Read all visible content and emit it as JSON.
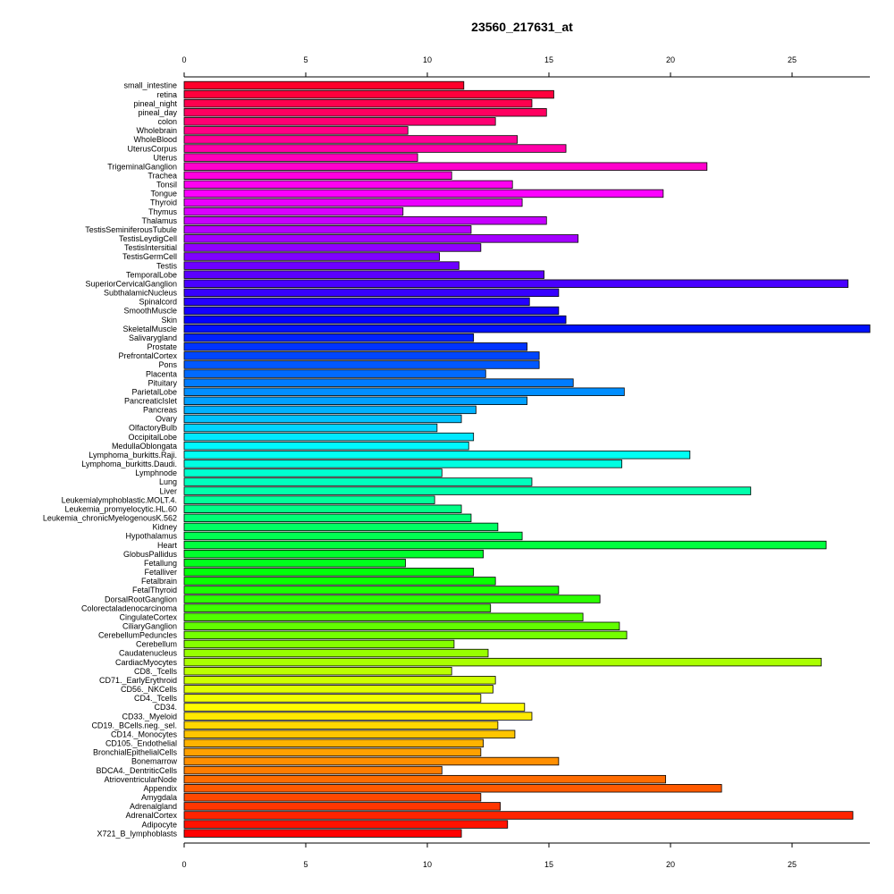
{
  "chart_data": {
    "type": "bar",
    "orientation": "horizontal",
    "title": "23560_217631_at",
    "xlabel": "",
    "ylabel": "",
    "xlim": [
      0,
      28.2
    ],
    "ticks": [
      0,
      5,
      10,
      15,
      20,
      25
    ],
    "grid": false,
    "categories": [
      "small_intestine",
      "retina",
      "pineal_night",
      "pineal_day",
      "colon",
      "Wholebrain",
      "WholeBlood",
      "UterusCorpus",
      "Uterus",
      "TrigeminalGanglion",
      "Trachea",
      "Tonsil",
      "Tongue",
      "Thyroid",
      "Thymus",
      "Thalamus",
      "TestisSeminiferousTubule",
      "TestisLeydigCell",
      "TestisIntersitial",
      "TestisGermCell",
      "Testis",
      "TemporalLobe",
      "SuperiorCervicalGanglion",
      "SubthalamicNucleus",
      "Spinalcord",
      "SmoothMuscle",
      "Skin",
      "SkeletalMuscle",
      "Salivarygland",
      "Prostate",
      "PrefrontalCortex",
      "Pons",
      "Placenta",
      "Pituitary",
      "ParietalLobe",
      "PancreaticIslet",
      "Pancreas",
      "Ovary",
      "OlfactoryBulb",
      "OccipitalLobe",
      "MedullaOblongata",
      "Lymphoma_burkitts.Raji.",
      "Lymphoma_burkitts.Daudi.",
      "Lymphnode",
      "Lung",
      "Liver",
      "Leukemialymphoblastic.MOLT.4.",
      "Leukemia_promyelocytic.HL.60",
      "Leukemia_chronicMyelogenousK.562",
      "Kidney",
      "Hypothalamus",
      "Heart",
      "GlobusPallidus",
      "Fetallung",
      "Fetalliver",
      "Fetalbrain",
      "FetalThyroid",
      "DorsalRootGanglion",
      "Colorectaladenocarcinoma",
      "CingulateCortex",
      "CiliaryGanglion",
      "CerebellumPeduncles",
      "Cerebellum",
      "Caudatenucleus",
      "CardiacMyocytes",
      "CD8._Tcells",
      "CD71._EarlyErythroid",
      "CD56._NKCells",
      "CD4._Tcells",
      "CD34.",
      "CD33._Myeloid",
      "CD19._BCells.neg._sel.",
      "CD14._Monocytes",
      "CD105._Endothelial",
      "BronchialEpithelialCells",
      "Bonemarrow",
      "BDCA4._DentriticCells",
      "AtrioventricularNode",
      "Appendix",
      "Amygdala",
      "Adrenalgland",
      "AdrenalCortex",
      "Adipocyte",
      "X721_B_lymphoblasts"
    ],
    "values": [
      11.5,
      15.2,
      14.3,
      14.9,
      12.8,
      9.2,
      13.7,
      15.7,
      9.6,
      21.5,
      11.0,
      13.5,
      19.7,
      13.9,
      9.0,
      14.9,
      11.8,
      16.2,
      12.2,
      10.5,
      11.3,
      14.8,
      27.3,
      15.4,
      14.2,
      15.4,
      15.7,
      28.2,
      11.9,
      14.1,
      14.6,
      14.6,
      12.4,
      16.0,
      18.1,
      14.1,
      12.0,
      11.4,
      10.4,
      11.9,
      11.7,
      20.8,
      18.0,
      10.6,
      14.3,
      23.3,
      10.3,
      11.4,
      11.8,
      12.9,
      13.9,
      26.4,
      12.3,
      9.1,
      11.9,
      12.8,
      15.4,
      17.1,
      12.6,
      16.4,
      17.9,
      18.2,
      11.1,
      12.5,
      26.2,
      11.0,
      12.8,
      12.7,
      12.2,
      14.0,
      14.3,
      12.9,
      13.6,
      12.3,
      12.2,
      15.4,
      10.6,
      19.8,
      22.1,
      12.2,
      13.0,
      27.5,
      13.3,
      11.4
    ]
  }
}
